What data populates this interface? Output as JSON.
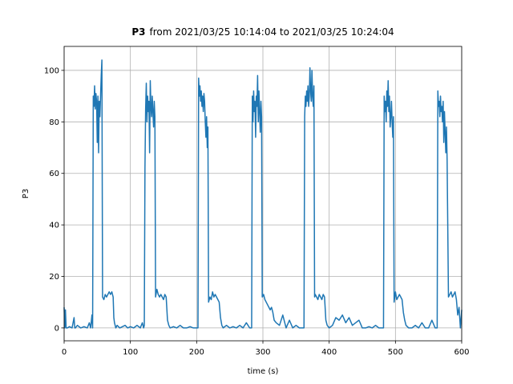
{
  "chart_data": {
    "type": "line",
    "title": {
      "bold": "P3",
      "text": "from 2021/03/25 10:14:04 to 2021/03/25 10:24:04"
    },
    "xlabel": "time (s)",
    "ylabel": "P3",
    "color": "#1f77b4",
    "grid": true,
    "xlim": [
      0,
      600
    ],
    "ylim": [
      -5.0,
      109.3
    ],
    "xticks": [
      0,
      100,
      200,
      300,
      400,
      500,
      600
    ],
    "yticks": [
      0,
      20,
      40,
      60,
      80,
      100
    ],
    "x": [
      0,
      1,
      2,
      3,
      5,
      8,
      12,
      15,
      16,
      17,
      20,
      25,
      30,
      35,
      38,
      40,
      42,
      43,
      44,
      45,
      46,
      47,
      48,
      49,
      50,
      51,
      52,
      53,
      54,
      55,
      56,
      57,
      58,
      60,
      62,
      64,
      66,
      68,
      70,
      72,
      74,
      75,
      76,
      78,
      80,
      84,
      88,
      92,
      96,
      100,
      105,
      110,
      115,
      118,
      120,
      121,
      122,
      123,
      124,
      125,
      126,
      127,
      128,
      129,
      130,
      131,
      132,
      133,
      134,
      135,
      136,
      137,
      138,
      140,
      142,
      144,
      146,
      148,
      150,
      152,
      154,
      156,
      158,
      160,
      165,
      170,
      175,
      180,
      185,
      190,
      195,
      200,
      202,
      203,
      204,
      205,
      206,
      207,
      208,
      209,
      210,
      211,
      212,
      213,
      214,
      215,
      216,
      217,
      218,
      220,
      222,
      224,
      226,
      228,
      230,
      232,
      234,
      236,
      238,
      240,
      245,
      250,
      255,
      260,
      265,
      270,
      275,
      280,
      282,
      283,
      284,
      285,
      286,
      287,
      288,
      289,
      290,
      291,
      292,
      293,
      294,
      295,
      296,
      297,
      298,
      299,
      301,
      303,
      305,
      307,
      309,
      311,
      313,
      315,
      317,
      320,
      325,
      330,
      335,
      340,
      345,
      350,
      355,
      360,
      361,
      362,
      363,
      364,
      365,
      366,
      367,
      368,
      369,
      370,
      371,
      372,
      373,
      374,
      375,
      376,
      377,
      378,
      379,
      381,
      383,
      385,
      387,
      389,
      391,
      393,
      395,
      397,
      400,
      405,
      410,
      415,
      420,
      425,
      430,
      435,
      440,
      445,
      450,
      455,
      460,
      465,
      470,
      475,
      480,
      481,
      482,
      483,
      484,
      485,
      486,
      487,
      488,
      489,
      490,
      491,
      492,
      493,
      494,
      495,
      496,
      497,
      498,
      500,
      502,
      504,
      506,
      508,
      510,
      512,
      514,
      516,
      520,
      525,
      530,
      535,
      540,
      545,
      550,
      555,
      560,
      562,
      563,
      564,
      565,
      566,
      567,
      568,
      569,
      570,
      571,
      572,
      573,
      574,
      575,
      576,
      577,
      578,
      580,
      582,
      584,
      586,
      588,
      590,
      592,
      594,
      596,
      598,
      600
    ],
    "values": [
      8,
      0,
      7,
      0,
      0,
      0.5,
      0,
      4,
      0,
      0,
      1,
      0,
      0.5,
      0,
      2,
      0,
      5,
      0,
      90,
      86,
      94,
      85,
      91,
      88,
      72,
      90,
      68,
      88,
      82,
      90,
      98,
      104,
      12,
      11,
      13,
      12,
      13,
      14,
      13,
      14,
      12,
      4,
      2,
      0,
      1,
      0,
      0.5,
      1,
      0,
      0.5,
      0,
      1,
      0,
      2,
      0,
      1,
      62,
      85,
      95,
      80,
      90,
      84,
      88,
      68,
      96,
      86,
      82,
      90,
      84,
      78,
      88,
      82,
      12,
      15,
      13,
      12,
      13,
      12,
      11,
      13,
      12,
      3,
      1,
      0,
      0.5,
      0,
      1,
      0,
      0,
      0.5,
      0,
      0,
      0,
      97,
      90,
      94,
      88,
      92,
      86,
      90,
      84,
      91,
      88,
      80,
      74,
      82,
      70,
      78,
      10,
      12,
      11,
      14,
      12,
      13,
      12,
      11,
      10,
      4,
      1,
      0,
      1,
      0,
      0.5,
      0,
      1,
      0,
      2,
      0,
      0,
      0,
      90,
      80,
      92,
      84,
      88,
      74,
      90,
      86,
      98,
      80,
      92,
      84,
      76,
      88,
      82,
      12,
      13,
      11,
      10,
      9,
      8,
      7,
      8,
      6,
      3,
      2,
      1,
      5,
      0,
      3,
      0,
      1,
      0,
      0,
      0,
      0,
      82,
      90,
      86,
      92,
      88,
      94,
      86,
      90,
      101,
      92,
      88,
      100,
      90,
      86,
      94,
      12,
      13,
      12,
      11,
      13,
      12,
      11,
      13,
      12,
      3,
      1,
      0,
      1,
      4,
      3,
      5,
      2,
      4,
      1,
      2,
      3,
      0,
      0,
      0.5,
      0,
      1,
      0,
      0,
      0,
      0,
      90,
      84,
      88,
      80,
      92,
      86,
      96,
      84,
      90,
      78,
      82,
      88,
      80,
      74,
      82,
      10,
      14,
      11,
      12,
      13,
      12,
      11,
      6,
      3,
      1,
      0,
      0,
      1,
      0,
      2,
      0,
      0,
      3,
      0,
      0,
      0,
      92,
      86,
      88,
      82,
      90,
      84,
      86,
      80,
      88,
      72,
      84,
      76,
      68,
      78,
      65,
      12,
      13,
      14,
      12,
      13,
      14,
      11,
      5,
      8,
      0,
      7
    ]
  }
}
